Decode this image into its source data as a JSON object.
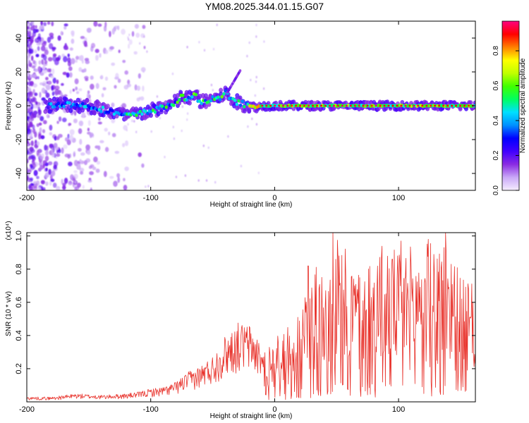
{
  "title": "YM08.2025.344.01.15.G07",
  "colors": {
    "line": "#e8312a",
    "axis": "#000000",
    "background": "#ffffff"
  },
  "chart_data": [
    {
      "type": "heatmap",
      "name": "spectrogram",
      "xlabel": "Height of straight line (km)",
      "ylabel": "Frequency (Hz)",
      "xlim": [
        -200,
        162
      ],
      "ylim": [
        -50,
        50
      ],
      "xticks": [
        -200,
        -100,
        0,
        100
      ],
      "xtick_labels": [
        "-200",
        "-100",
        "0",
        "100"
      ],
      "yticks": [
        -40,
        -20,
        0,
        20,
        40
      ],
      "ytick_labels": [
        "-40",
        "-20",
        "0",
        "20",
        "40"
      ],
      "colorbar": {
        "label": "Normalized spectral amplitude",
        "range": [
          0,
          0.97
        ],
        "ticks": [
          0.0,
          0.2,
          0.4,
          0.6,
          0.8
        ],
        "tick_labels": [
          "0.0",
          "0.2",
          "0.4",
          "0.6",
          "0.8"
        ],
        "colors": [
          "#f5edff",
          "#c9a8f7",
          "#8a2be2",
          "#4000ff",
          "#0000ff",
          "#0090ff",
          "#00e0ff",
          "#00ff60",
          "#40ff00",
          "#c0ff00",
          "#ffff00",
          "#ff8000",
          "#ff0000",
          "#ff0080"
        ]
      },
      "ridge": {
        "x": [
          -200,
          -170,
          -150,
          -130,
          -120,
          -110,
          -100,
          -90,
          -80,
          -75,
          -70,
          -65,
          -60,
          -55,
          -50,
          -45,
          -40,
          -35,
          -30,
          -25,
          -20,
          -15,
          -10,
          0,
          20,
          40,
          60,
          80,
          100,
          120,
          140,
          162
        ],
        "y": [
          0,
          1,
          0,
          -4,
          -6,
          -5,
          -3,
          -1,
          2,
          5,
          4,
          6,
          3,
          2,
          5,
          4,
          8,
          3,
          2,
          1,
          0,
          -1,
          0,
          0,
          0,
          0,
          0,
          0,
          0,
          0,
          0,
          0
        ]
      },
      "annotations": []
    },
    {
      "type": "line",
      "name": "snr",
      "xlabel": "Height of straight line (km)",
      "ylabel": "SNR (10 * v/v)",
      "y_multiplier": "(x10⁴)",
      "xlim": [
        -200,
        162
      ],
      "ylim": [
        0,
        1.02
      ],
      "xticks": [
        -200,
        -100,
        0,
        100
      ],
      "xtick_labels": [
        "-200",
        "-100",
        "0",
        "100"
      ],
      "yticks": [
        0.2,
        0.4,
        0.6,
        0.8,
        1.0
      ],
      "ytick_labels": [
        "0.2",
        "0.4",
        "0.6",
        "0.8",
        "1.0"
      ],
      "envelope": {
        "x": [
          -200,
          -180,
          -160,
          -140,
          -120,
          -110,
          -100,
          -90,
          -80,
          -70,
          -60,
          -50,
          -40,
          -30,
          -20,
          -10,
          0,
          10,
          20,
          30,
          40,
          50,
          60,
          70,
          80,
          90,
          100,
          110,
          120,
          130,
          140,
          150,
          162
        ],
        "y": [
          0.03,
          0.03,
          0.05,
          0.04,
          0.05,
          0.06,
          0.08,
          0.09,
          0.12,
          0.18,
          0.22,
          0.28,
          0.4,
          0.48,
          0.47,
          0.35,
          0.38,
          0.45,
          0.55,
          0.78,
          0.9,
          1.02,
          0.88,
          0.78,
          0.92,
          0.98,
          0.9,
          0.95,
          0.98,
          0.95,
          1.02,
          0.75,
          0.7
        ]
      },
      "peaks": {
        "x": [
          27,
          47,
          52,
          95,
          102,
          124,
          138
        ],
        "y": [
          0.82,
          1.02,
          0.88,
          0.86,
          0.97,
          0.98,
          1.02
        ]
      }
    }
  ]
}
